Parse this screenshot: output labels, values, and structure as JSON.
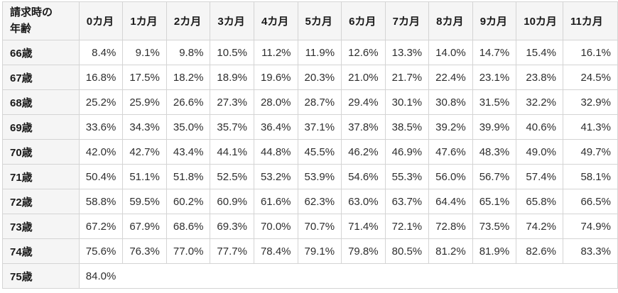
{
  "colors": {
    "header_bg": "#f5f5f5",
    "border": "#d4d4d4",
    "cell_bg": "#ffffff",
    "header_text": "#1a1a1a",
    "value_text": "#2e2e2e"
  },
  "chart_data": {
    "type": "table",
    "corner_header_lines": [
      "請求時の",
      "年齢"
    ],
    "month_columns": [
      "0カ月",
      "1カ月",
      "2カ月",
      "3カ月",
      "4カ月",
      "5カ月",
      "6カ月",
      "7カ月",
      "8カ月",
      "9カ月",
      "10カ月",
      "11カ月"
    ],
    "rows": [
      {
        "age": "66歳",
        "values": [
          "8.4%",
          "9.1%",
          "9.8%",
          "10.5%",
          "11.2%",
          "11.9%",
          "12.6%",
          "13.3%",
          "14.0%",
          "14.7%",
          "15.4%",
          "16.1%"
        ]
      },
      {
        "age": "67歳",
        "values": [
          "16.8%",
          "17.5%",
          "18.2%",
          "18.9%",
          "19.6%",
          "20.3%",
          "21.0%",
          "21.7%",
          "22.4%",
          "23.1%",
          "23.8%",
          "24.5%"
        ]
      },
      {
        "age": "68歳",
        "values": [
          "25.2%",
          "25.9%",
          "26.6%",
          "27.3%",
          "28.0%",
          "28.7%",
          "29.4%",
          "30.1%",
          "30.8%",
          "31.5%",
          "32.2%",
          "32.9%"
        ]
      },
      {
        "age": "69歳",
        "values": [
          "33.6%",
          "34.3%",
          "35.0%",
          "35.7%",
          "36.4%",
          "37.1%",
          "37.8%",
          "38.5%",
          "39.2%",
          "39.9%",
          "40.6%",
          "41.3%"
        ]
      },
      {
        "age": "70歳",
        "values": [
          "42.0%",
          "42.7%",
          "43.4%",
          "44.1%",
          "44.8%",
          "45.5%",
          "46.2%",
          "46.9%",
          "47.6%",
          "48.3%",
          "49.0%",
          "49.7%"
        ]
      },
      {
        "age": "71歳",
        "values": [
          "50.4%",
          "51.1%",
          "51.8%",
          "52.5%",
          "53.2%",
          "53.9%",
          "54.6%",
          "55.3%",
          "56.0%",
          "56.7%",
          "57.4%",
          "58.1%"
        ]
      },
      {
        "age": "72歳",
        "values": [
          "58.8%",
          "59.5%",
          "60.2%",
          "60.9%",
          "61.6%",
          "62.3%",
          "63.0%",
          "63.7%",
          "64.4%",
          "65.1%",
          "65.8%",
          "66.5%"
        ]
      },
      {
        "age": "73歳",
        "values": [
          "67.2%",
          "67.9%",
          "68.6%",
          "69.3%",
          "70.0%",
          "70.7%",
          "71.4%",
          "72.1%",
          "72.8%",
          "73.5%",
          "74.2%",
          "74.9%"
        ]
      },
      {
        "age": "74歳",
        "values": [
          "75.6%",
          "76.3%",
          "77.0%",
          "77.7%",
          "78.4%",
          "79.1%",
          "79.8%",
          "80.5%",
          "81.2%",
          "81.9%",
          "82.6%",
          "83.3%"
        ]
      },
      {
        "age": "75歳",
        "values": [
          "84.0%"
        ],
        "colspan_all": true
      }
    ],
    "layout": {
      "age_col_width": 110,
      "month_col_width": 61,
      "month10_col_width": 65,
      "month11_col_width": 78
    }
  }
}
